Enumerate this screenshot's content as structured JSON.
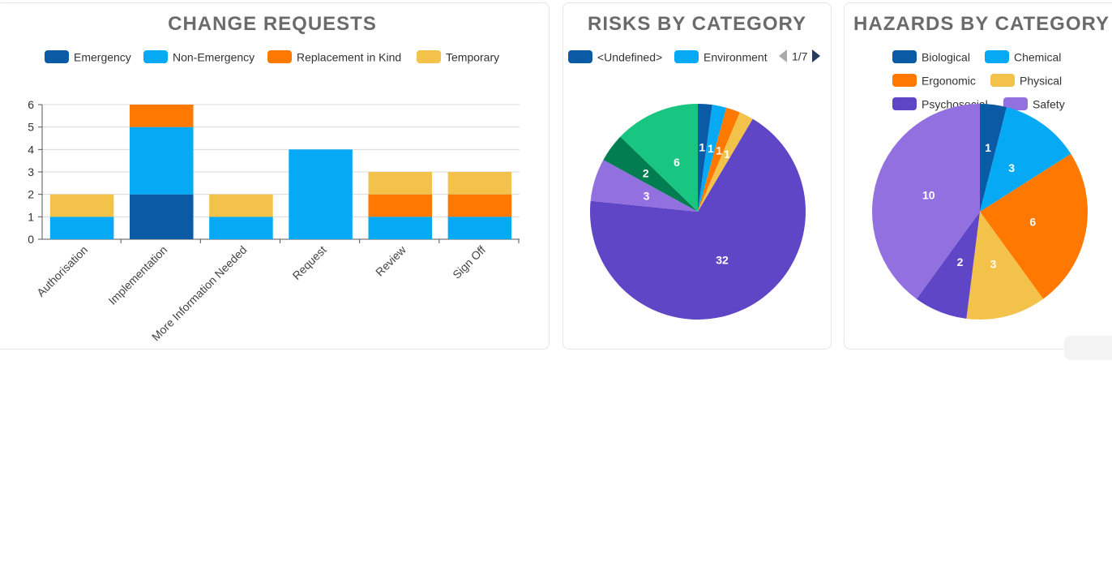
{
  "change_requests": {
    "title": "CHANGE REQUESTS",
    "legend": [
      "Emergency",
      "Non-Emergency",
      "Replacement in Kind",
      "Temporary"
    ]
  },
  "risks": {
    "title": "RISKS BY CATEGORY",
    "legend": [
      "<Undefined>",
      "Environment"
    ],
    "pager": "1/7"
  },
  "hazards": {
    "title": "HAZARDS BY CATEGORY",
    "legend": [
      "Biological",
      "Chemical",
      "Ergonomic",
      "Physical",
      "Psychosocial",
      "Safety"
    ]
  },
  "chart_data": [
    {
      "type": "bar",
      "stacked": true,
      "title": "CHANGE REQUESTS",
      "categories": [
        "Authorisation",
        "Implementation",
        "More Information Needed",
        "Request",
        "Review",
        "Sign Off"
      ],
      "series": [
        {
          "name": "Emergency",
          "color": "#0a5aa5",
          "values": [
            0,
            2,
            0,
            0,
            0,
            0
          ]
        },
        {
          "name": "Non-Emergency",
          "color": "#06a9f4",
          "values": [
            1,
            3,
            1,
            4,
            1,
            1
          ]
        },
        {
          "name": "Replacement in Kind",
          "color": "#ff7900",
          "values": [
            0,
            1,
            0,
            0,
            1,
            1
          ]
        },
        {
          "name": "Temporary",
          "color": "#f3c24b",
          "values": [
            1,
            0,
            1,
            0,
            1,
            1
          ]
        }
      ],
      "ylim": [
        0,
        6
      ],
      "yticks": [
        "0",
        "1",
        "2",
        "3",
        "4",
        "5",
        "6"
      ],
      "grid": true,
      "legend_position": "top"
    },
    {
      "type": "pie",
      "title": "RISKS BY CATEGORY",
      "slices": [
        {
          "value": 1,
          "label": "1",
          "color": "#0a5aa5"
        },
        {
          "value": 1,
          "label": "1",
          "color": "#06a9f4"
        },
        {
          "value": 1,
          "label": "1",
          "color": "#ff7900"
        },
        {
          "value": 1,
          "label": "1",
          "color": "#f3c24b"
        },
        {
          "value": 32,
          "label": "32",
          "color": "#5f46c6"
        },
        {
          "value": 3,
          "label": "3",
          "color": "#9370e0"
        },
        {
          "value": 2,
          "label": "2",
          "color": "#007e52"
        },
        {
          "value": 6,
          "label": "6",
          "color": "#18c681"
        }
      ],
      "legend_position": "top"
    },
    {
      "type": "pie",
      "title": "HAZARDS BY CATEGORY",
      "slices": [
        {
          "value": 1,
          "label": "1",
          "color": "#0a5aa5"
        },
        {
          "value": 3,
          "label": "3",
          "color": "#06a9f4"
        },
        {
          "value": 6,
          "label": "6",
          "color": "#ff7900"
        },
        {
          "value": 3,
          "label": "3",
          "color": "#f3c24b"
        },
        {
          "value": 2,
          "label": "2",
          "color": "#5f46c6"
        },
        {
          "value": 10,
          "label": "10",
          "color": "#9370e0"
        }
      ],
      "legend_position": "top"
    }
  ]
}
